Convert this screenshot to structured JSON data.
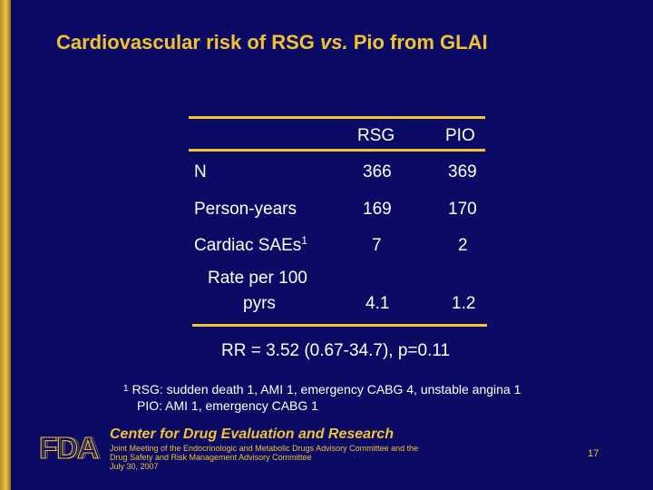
{
  "slide": {
    "title_part1": "Cardiovascular risk of RSG ",
    "title_vs": "vs.",
    "title_part2": " Pio from GLAI"
  },
  "table": {
    "columns": [
      "RSG",
      "PIO"
    ],
    "rows": [
      {
        "label": "N",
        "values": [
          "366",
          "369"
        ]
      },
      {
        "label": "Person-years",
        "values": [
          "169",
          "170"
        ]
      },
      {
        "label": "Cardiac SAEs",
        "label_sup": "1",
        "values": [
          "7",
          "2"
        ]
      },
      {
        "label_line1": "Rate per 100",
        "label_line2": "pyrs",
        "values": [
          "4.1",
          "1.2"
        ]
      }
    ]
  },
  "rr_text": "RR = 3.52 (0.67-34.7), p=0.11",
  "footnote": {
    "mark": "1",
    "line1": "RSG: sudden death 1, AMI 1, emergency CABG 4, unstable angina 1",
    "line2": "PIO: AMI 1, emergency CABG 1"
  },
  "footer": {
    "logo_text": "FDA",
    "center_name": "Center for Drug Evaluation and Research",
    "meeting_line1": "Joint Meeting of the Endocrinologic and Metabolic Drugs Advisory Committee and the",
    "meeting_line2": "Drug Safety and Risk Management Advisory Committee",
    "date": "July 30, 2007",
    "page_number": "17"
  },
  "colors": {
    "background": "#0b0b66",
    "accent_gold": "#f1c232",
    "text": "#ffffff"
  }
}
